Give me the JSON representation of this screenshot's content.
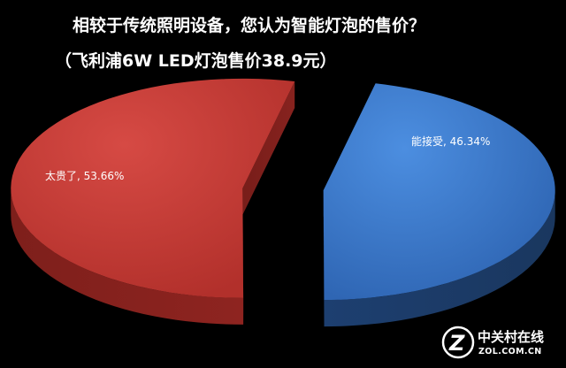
{
  "chart_data": {
    "type": "pie",
    "title": "相较于传统照明设备，您认为智能灯泡的售价？",
    "subtitle": "（飞利浦6W LED灯泡售价38.9元）",
    "categories": [
      "能接受",
      "太贵了"
    ],
    "values": [
      46.34,
      53.66
    ],
    "data_labels": [
      "能接受, 46.34%",
      "太贵了, 53.66%"
    ],
    "colors": [
      "#3b7bd0",
      "#c8403a"
    ],
    "exploded": true,
    "three_d": true,
    "legend": "none"
  },
  "watermark": {
    "brand_cn": "中关村在线",
    "brand_en": "ZOL.COM.CN"
  }
}
